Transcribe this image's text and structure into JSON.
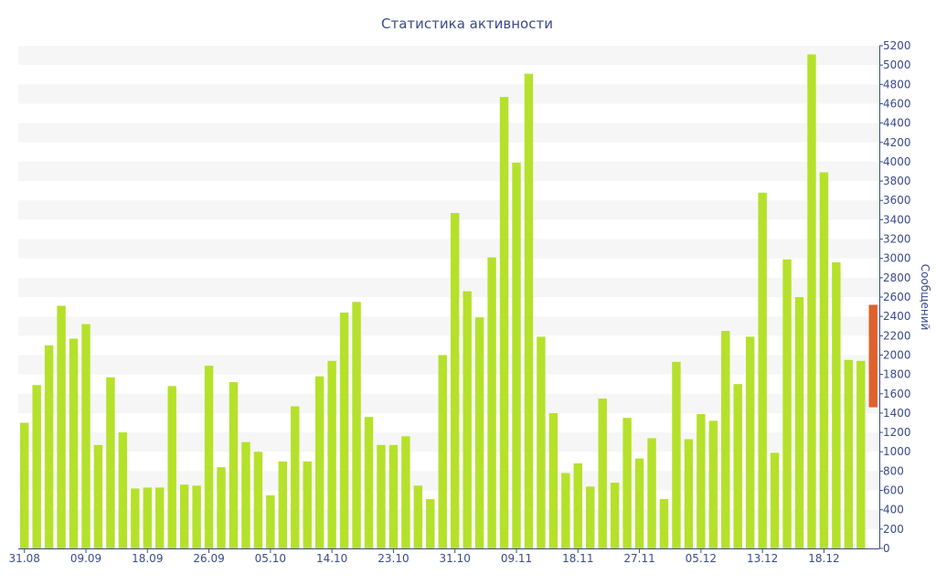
{
  "chart_data": {
    "type": "bar",
    "title": "Статистика активности",
    "ylabel": "Сообщений",
    "xlabel": "",
    "ylim": [
      0,
      5200
    ],
    "ytick_step": 200,
    "grid": "horizontal bands",
    "x_tick_labels": [
      "31.08",
      "09.09",
      "18.09",
      "26.09",
      "05.10",
      "14.10",
      "23.10",
      "31.10",
      "09.11",
      "18.11",
      "27.11",
      "05.12",
      "13.12",
      "18.12"
    ],
    "x_tick_positions": [
      0,
      5,
      10,
      15,
      20,
      25,
      30,
      35,
      40,
      45,
      50,
      55,
      60,
      65
    ],
    "values": [
      1300,
      1690,
      2100,
      2510,
      2170,
      2320,
      1070,
      1770,
      1200,
      620,
      630,
      630,
      1680,
      660,
      650,
      1890,
      840,
      1720,
      1100,
      1000,
      550,
      900,
      1470,
      900,
      1780,
      1940,
      2440,
      2550,
      1360,
      1070,
      1070,
      1160,
      650,
      510,
      2000,
      3470,
      2660,
      2390,
      3010,
      4670,
      3990,
      4910,
      2190,
      1400,
      780,
      880,
      640,
      1550,
      680,
      1350,
      930,
      1140,
      510,
      1930,
      1130,
      1390,
      1320,
      2250,
      1700,
      2190,
      3680,
      990,
      2990,
      2600,
      5110,
      3890,
      2960,
      1950,
      1940
    ],
    "highlight": {
      "low": 1460,
      "high": 2520,
      "color": "#e0622a"
    },
    "colors": {
      "bar": "#b5e12b",
      "band": "#f6f6f6",
      "text": "#3b4a8a",
      "axis": "#3b4a8a"
    }
  }
}
